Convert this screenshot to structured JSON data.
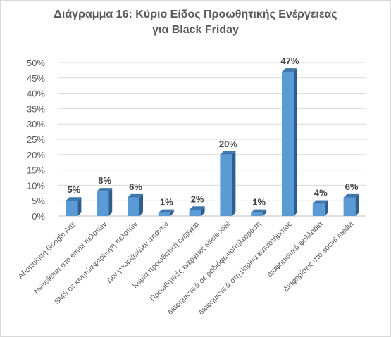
{
  "chart_data": {
    "type": "bar",
    "title_lines": [
      "Διάγραμμα 16: Κύριο Είδος Προωθητικής Ενέργειεας",
      "για Black Friday"
    ],
    "categories": [
      "Αξιοποίηση Google Ads",
      "Newsletter στο email πελατών",
      "SMS σε κινητό/εφαρμογή πελατών",
      "Δεν γνωρίζω/Δεν απαντώ",
      "Καμία προωθητική ενέργεια",
      "Προωθητικές ενέργειες site/social",
      "Διαφημιστικά σε ραδιόφωνο/τηλεόραση",
      "Διαφημιστικά στη βιτρίνα καταστήματος",
      "Διαφημιστικά φυλλάδια",
      "Διαφημίσεις στα social media"
    ],
    "values": [
      5,
      8,
      6,
      1,
      2,
      20,
      1,
      47,
      4,
      6
    ],
    "value_labels": [
      "5%",
      "8%",
      "6%",
      "1%",
      "2%",
      "20%",
      "1%",
      "47%",
      "4%",
      "6%"
    ],
    "ylim": [
      0,
      50
    ],
    "yticks": [
      0,
      5,
      10,
      15,
      20,
      25,
      30,
      35,
      40,
      45,
      50
    ],
    "ytick_labels": [
      "0%",
      "5%",
      "10%",
      "15%",
      "20%",
      "25%",
      "30%",
      "35%",
      "40%",
      "45%",
      "50%"
    ],
    "grid": true,
    "colors": {
      "bar_front": "#5b9bd5",
      "bar_side": "#2e5f8f",
      "bar_top": "#3f78ad",
      "axis_text": "#595959",
      "label_text": "#404040",
      "gridline": "#d9d9d9"
    }
  }
}
